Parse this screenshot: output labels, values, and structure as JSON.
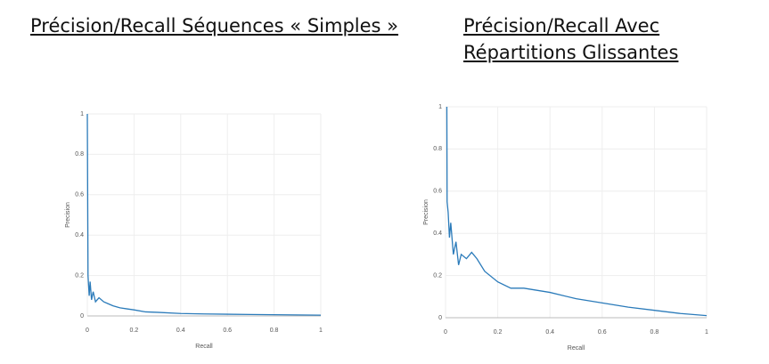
{
  "chart_data": [
    {
      "type": "line",
      "title": "Précision/Recall Séquences « Simples »",
      "x_label": "Recall",
      "y_label": "Precision",
      "x": [
        0,
        0.003,
        0.008,
        0.012,
        0.018,
        0.025,
        0.035,
        0.05,
        0.07,
        0.09,
        0.11,
        0.14,
        0.17,
        0.2,
        0.25,
        0.3,
        0.4,
        0.5,
        0.7,
        1
      ],
      "values": [
        1,
        0.2,
        0.1,
        0.17,
        0.08,
        0.12,
        0.07,
        0.09,
        0.07,
        0.06,
        0.05,
        0.04,
        0.035,
        0.03,
        0.02,
        0.018,
        0.012,
        0.01,
        0.007,
        0.004
      ],
      "color": "#2b7bba",
      "xlim": [
        0,
        1
      ],
      "ylim": [
        0,
        1
      ],
      "xticks": [
        0,
        0.2,
        0.4,
        0.6,
        0.8,
        1
      ],
      "yticks": [
        0,
        0.2,
        0.4,
        0.6,
        0.8,
        1
      ],
      "grid": true
    },
    {
      "type": "line",
      "title": "Précision/Recall Avec Répartitions Glissantes",
      "x_label": "Recall",
      "y_label": "Precision",
      "x": [
        0.005,
        0.006,
        0.01,
        0.015,
        0.02,
        0.03,
        0.04,
        0.05,
        0.06,
        0.08,
        0.1,
        0.12,
        0.15,
        0.2,
        0.25,
        0.3,
        0.35,
        0.4,
        0.5,
        0.6,
        0.7,
        0.8,
        0.9,
        1
      ],
      "values": [
        1,
        0.55,
        0.5,
        0.38,
        0.45,
        0.3,
        0.36,
        0.25,
        0.3,
        0.28,
        0.31,
        0.28,
        0.22,
        0.17,
        0.14,
        0.14,
        0.13,
        0.12,
        0.09,
        0.07,
        0.05,
        0.035,
        0.02,
        0.01
      ],
      "color": "#2b7bba",
      "xlim": [
        0,
        1
      ],
      "ylim": [
        0,
        1
      ],
      "xticks": [
        0,
        0.2,
        0.4,
        0.6,
        0.8,
        1
      ],
      "yticks": [
        0,
        0.2,
        0.4,
        0.6,
        0.8,
        1
      ],
      "grid": true
    }
  ]
}
